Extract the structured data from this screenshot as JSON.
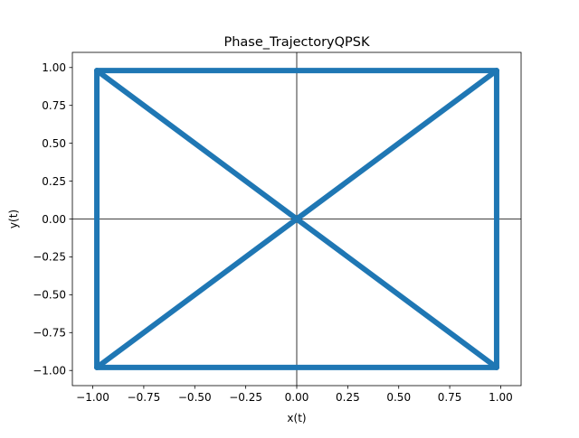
{
  "chart_data": {
    "type": "line",
    "title": "Phase_TrajectoryQPSK",
    "xlabel": "x(t)",
    "ylabel": "y(t)",
    "xlim": [
      -1.1,
      1.1
    ],
    "ylim": [
      -1.1,
      1.1
    ],
    "xticks": [
      -1.0,
      -0.75,
      -0.5,
      -0.25,
      0.0,
      0.25,
      0.5,
      0.75,
      1.0
    ],
    "xtick_labels": [
      "−1.00",
      "−0.75",
      "−0.50",
      "−0.25",
      "0.00",
      "0.25",
      "0.50",
      "0.75",
      "1.00"
    ],
    "yticks": [
      1.0,
      0.75,
      0.5,
      0.25,
      0.0,
      -0.25,
      -0.5,
      -0.75,
      -1.0
    ],
    "ytick_labels": [
      "1.00",
      "0.75",
      "0.50",
      "0.25",
      "0.00",
      "−0.25",
      "−0.50",
      "−0.75",
      "−1.00"
    ],
    "reference_lines": {
      "x": 0.0,
      "y": 0.0
    },
    "grid": false,
    "series": [
      {
        "color": "#1f77b4",
        "segments": [
          [
            [
              -0.98,
              0.98
            ],
            [
              0.98,
              0.98
            ]
          ],
          [
            [
              0.98,
              0.98
            ],
            [
              0.98,
              -0.98
            ]
          ],
          [
            [
              0.98,
              -0.98
            ],
            [
              -0.98,
              -0.98
            ]
          ],
          [
            [
              -0.98,
              -0.98
            ],
            [
              -0.98,
              0.98
            ]
          ],
          [
            [
              -0.98,
              0.98
            ],
            [
              0.98,
              -0.98
            ]
          ],
          [
            [
              -0.98,
              -0.98
            ],
            [
              0.98,
              0.98
            ]
          ]
        ]
      }
    ]
  }
}
